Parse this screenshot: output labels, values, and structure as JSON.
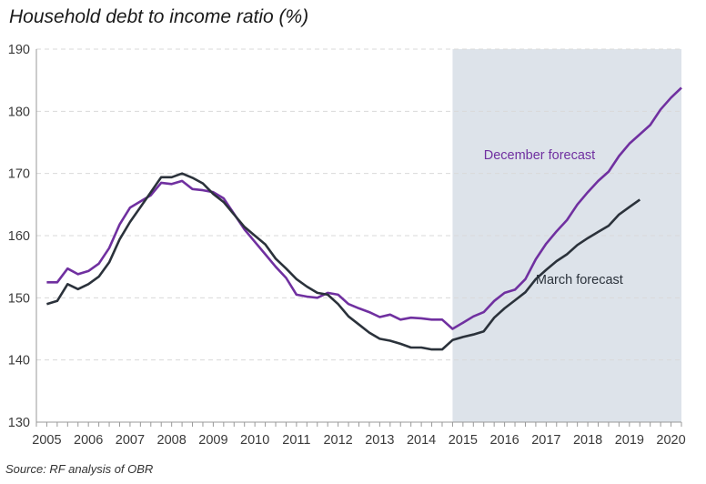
{
  "chart_data": {
    "type": "line",
    "title": "Household debt to income ratio (%)",
    "source": "Source: RF analysis of OBR",
    "ylim": [
      130,
      190
    ],
    "yticks": [
      130,
      140,
      150,
      160,
      170,
      180,
      190
    ],
    "xlim": [
      2004.75,
      2020.25
    ],
    "xticks": [
      "2005",
      "2006",
      "2007",
      "2008",
      "2009",
      "2010",
      "2011",
      "2012",
      "2013",
      "2014",
      "2015",
      "2016",
      "2017",
      "2018",
      "2019",
      "2020"
    ],
    "grid": "horizontal dashed",
    "forecast_shading": {
      "from": 2014.75,
      "to": 2020.25,
      "color": "#dde3ea"
    },
    "colors": {
      "march": "#2b323b",
      "december": "#7030a0",
      "axis": "#999999",
      "grid": "#d9d9d9"
    },
    "series": [
      {
        "name": "December forecast",
        "color": "#7030a0",
        "points": [
          [
            2005.0,
            152.5
          ],
          [
            2005.25,
            152.5
          ],
          [
            2005.5,
            154.7
          ],
          [
            2005.75,
            153.8
          ],
          [
            2006.0,
            154.3
          ],
          [
            2006.25,
            155.5
          ],
          [
            2006.5,
            158.0
          ],
          [
            2006.75,
            161.8
          ],
          [
            2007.0,
            164.5
          ],
          [
            2007.25,
            165.5
          ],
          [
            2007.5,
            166.5
          ],
          [
            2007.75,
            168.5
          ],
          [
            2008.0,
            168.3
          ],
          [
            2008.25,
            168.8
          ],
          [
            2008.5,
            167.5
          ],
          [
            2008.75,
            167.3
          ],
          [
            2009.0,
            167.0
          ],
          [
            2009.25,
            166.0
          ],
          [
            2009.5,
            163.5
          ],
          [
            2009.75,
            161.0
          ],
          [
            2010.0,
            159.0
          ],
          [
            2010.25,
            157.0
          ],
          [
            2010.5,
            155.0
          ],
          [
            2010.75,
            153.2
          ],
          [
            2011.0,
            150.5
          ],
          [
            2011.25,
            150.2
          ],
          [
            2011.5,
            150.0
          ],
          [
            2011.75,
            150.8
          ],
          [
            2012.0,
            150.5
          ],
          [
            2012.25,
            149.0
          ],
          [
            2012.5,
            148.3
          ],
          [
            2012.75,
            147.7
          ],
          [
            2013.0,
            146.9
          ],
          [
            2013.25,
            147.3
          ],
          [
            2013.5,
            146.5
          ],
          [
            2013.75,
            146.8
          ],
          [
            2014.0,
            146.7
          ],
          [
            2014.25,
            146.5
          ],
          [
            2014.5,
            146.5
          ],
          [
            2014.75,
            145.0
          ],
          [
            2015.0,
            146.0
          ],
          [
            2015.25,
            147.0
          ],
          [
            2015.5,
            147.7
          ],
          [
            2015.75,
            149.5
          ],
          [
            2016.0,
            150.8
          ],
          [
            2016.25,
            151.3
          ],
          [
            2016.5,
            153.0
          ],
          [
            2016.75,
            156.2
          ],
          [
            2017.0,
            158.7
          ],
          [
            2017.25,
            160.7
          ],
          [
            2017.5,
            162.5
          ],
          [
            2017.75,
            165.0
          ],
          [
            2018.0,
            167.0
          ],
          [
            2018.25,
            168.8
          ],
          [
            2018.5,
            170.3
          ],
          [
            2018.75,
            172.8
          ],
          [
            2019.0,
            174.8
          ],
          [
            2019.25,
            176.3
          ],
          [
            2019.5,
            177.8
          ],
          [
            2019.75,
            180.3
          ],
          [
            2020.0,
            182.2
          ],
          [
            2020.25,
            183.8
          ]
        ]
      },
      {
        "name": "March forecast",
        "color": "#2b323b",
        "points": [
          [
            2005.0,
            149.0
          ],
          [
            2005.25,
            149.5
          ],
          [
            2005.5,
            152.2
          ],
          [
            2005.75,
            151.4
          ],
          [
            2006.0,
            152.2
          ],
          [
            2006.25,
            153.4
          ],
          [
            2006.5,
            155.7
          ],
          [
            2006.75,
            159.4
          ],
          [
            2007.0,
            162.2
          ],
          [
            2007.25,
            164.6
          ],
          [
            2007.5,
            167.0
          ],
          [
            2007.75,
            169.4
          ],
          [
            2008.0,
            169.4
          ],
          [
            2008.25,
            170.0
          ],
          [
            2008.5,
            169.3
          ],
          [
            2008.75,
            168.4
          ],
          [
            2009.0,
            166.7
          ],
          [
            2009.25,
            165.4
          ],
          [
            2009.5,
            163.4
          ],
          [
            2009.75,
            161.4
          ],
          [
            2010.0,
            160.0
          ],
          [
            2010.25,
            158.6
          ],
          [
            2010.5,
            156.3
          ],
          [
            2010.75,
            154.7
          ],
          [
            2011.0,
            153.0
          ],
          [
            2011.25,
            151.8
          ],
          [
            2011.5,
            150.8
          ],
          [
            2011.75,
            150.5
          ],
          [
            2012.0,
            149.0
          ],
          [
            2012.25,
            147.0
          ],
          [
            2012.5,
            145.7
          ],
          [
            2012.75,
            144.4
          ],
          [
            2013.0,
            143.4
          ],
          [
            2013.25,
            143.1
          ],
          [
            2013.5,
            142.6
          ],
          [
            2013.75,
            142.0
          ],
          [
            2014.0,
            142.0
          ],
          [
            2014.25,
            141.7
          ],
          [
            2014.5,
            141.7
          ],
          [
            2014.75,
            143.2
          ],
          [
            2015.0,
            143.7
          ],
          [
            2015.25,
            144.1
          ],
          [
            2015.5,
            144.6
          ],
          [
            2015.75,
            146.8
          ],
          [
            2016.0,
            148.3
          ],
          [
            2016.25,
            149.6
          ],
          [
            2016.5,
            150.9
          ],
          [
            2016.75,
            153.0
          ],
          [
            2017.0,
            154.5
          ],
          [
            2017.25,
            155.9
          ],
          [
            2017.5,
            157.0
          ],
          [
            2017.75,
            158.5
          ],
          [
            2018.0,
            159.6
          ],
          [
            2018.25,
            160.6
          ],
          [
            2018.5,
            161.6
          ],
          [
            2018.75,
            163.4
          ],
          [
            2019.0,
            164.6
          ],
          [
            2019.25,
            165.8
          ]
        ]
      }
    ],
    "annotations": [
      {
        "text": "December forecast",
        "series": "December forecast"
      },
      {
        "text": "March forecast",
        "series": "March forecast"
      }
    ]
  }
}
